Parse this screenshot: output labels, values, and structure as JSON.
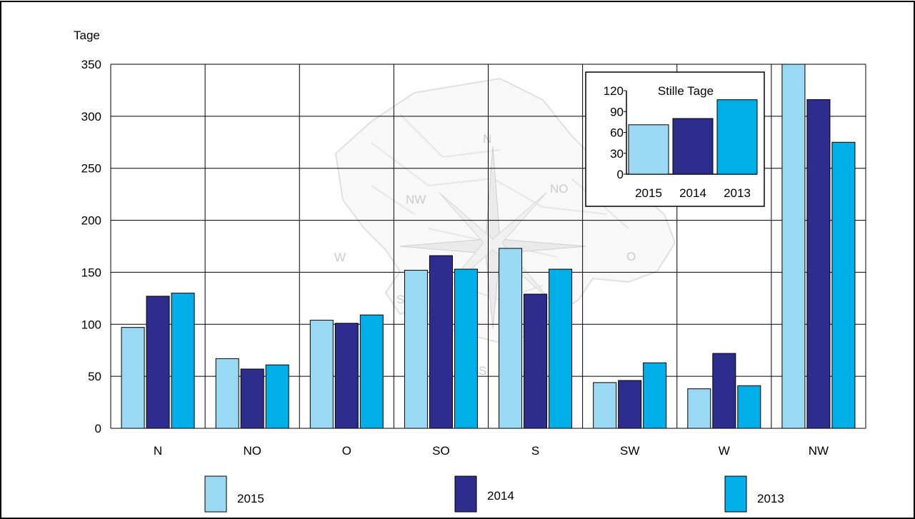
{
  "chart_data": {
    "type": "bar",
    "ylabel": "Tage",
    "ylim": [
      0,
      350
    ],
    "yticks": [
      0,
      50,
      100,
      150,
      200,
      250,
      300,
      350
    ],
    "categories": [
      "N",
      "NO",
      "O",
      "SO",
      "S",
      "SW",
      "W",
      "NW"
    ],
    "grid": true,
    "legend_position": "bottom",
    "series": [
      {
        "name": "2015",
        "color": "#99d9f4",
        "values": [
          97,
          67,
          104,
          152,
          173,
          44,
          38,
          350
        ]
      },
      {
        "name": "2014",
        "color": "#2d2d8e",
        "values": [
          127,
          57,
          101,
          166,
          129,
          46,
          72,
          316
        ]
      },
      {
        "name": "2013",
        "color": "#00aee8",
        "values": [
          130,
          61,
          109,
          153,
          153,
          63,
          41,
          275
        ]
      }
    ],
    "background_labels": [
      "N",
      "NO",
      "O",
      "S",
      "W",
      "NW",
      "SW"
    ],
    "inset": {
      "title": "Stille Tage",
      "ylim": [
        0,
        120
      ],
      "yticks": [
        0,
        30,
        60,
        90,
        120
      ],
      "categories": [
        "2015",
        "2014",
        "2013"
      ],
      "values": [
        71,
        80,
        107
      ],
      "colors": [
        "#99d9f4",
        "#2d2d8e",
        "#00aee8"
      ]
    }
  }
}
